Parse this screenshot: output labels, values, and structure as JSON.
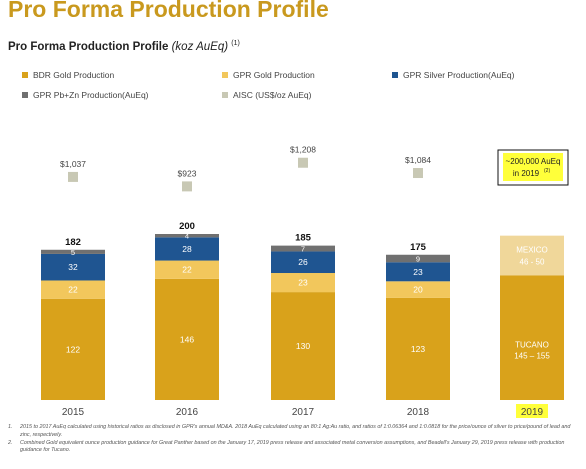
{
  "page_title": "Pro Forma Production Profile",
  "chart_data": {
    "type": "bar",
    "title": "Pro Forma Production Profile",
    "title_unit": "(koz AuEq)",
    "title_note": "(1)",
    "categories": [
      "2015",
      "2016",
      "2017",
      "2018",
      "2019"
    ],
    "series": [
      {
        "name": "BDR Gold Production",
        "values": [
          122,
          146,
          130,
          123,
          null
        ],
        "labels": [
          "122",
          "146",
          "130",
          "123",
          ""
        ],
        "color": "#d9a21b"
      },
      {
        "name": "GPR Gold Production",
        "values": [
          22,
          22,
          23,
          20,
          null
        ],
        "labels": [
          "22",
          "22",
          "23",
          "20",
          ""
        ],
        "color": "#f2c75c"
      },
      {
        "name": "GPR Silver Production(AuEq)",
        "values": [
          32,
          28,
          26,
          23,
          null
        ],
        "labels": [
          "32",
          "28",
          "26",
          "23",
          ""
        ],
        "color": "#1f5591"
      },
      {
        "name": "GPR Pb+Zn Production(AuEq)",
        "values": [
          5,
          4,
          7,
          9,
          null
        ],
        "labels": [
          "5",
          "4",
          "7",
          "9",
          ""
        ],
        "color": "#707070"
      }
    ],
    "totals": [
      182,
      200,
      185,
      175,
      null
    ],
    "total_labels": [
      "182",
      "200",
      "185",
      "175",
      ""
    ],
    "aisc": {
      "name": "AISC (US$/oz AuEq)",
      "values": [
        1037,
        923,
        1208,
        1084,
        null
      ],
      "labels": [
        "$1,037",
        "$923",
        "$1,208",
        "$1,084",
        ""
      ],
      "color": "#c8c8b4"
    },
    "guidance_2019": {
      "tucano_label": "TUCANO",
      "tucano_range": "145 – 155",
      "tucano_value": 150,
      "tucano_color": "#d9a21b",
      "mexico_label": "MEXICO",
      "mexico_range": "46 - 50",
      "mexico_value": 48,
      "mexico_color": "#f0d79a",
      "callout_line1": "~200,000 AuEq",
      "callout_line2": "in 2019",
      "callout_note": "(2)",
      "highlight_color": "#ffff3a"
    },
    "ylim": [
      0,
      340
    ],
    "xlabel": "",
    "ylabel": "",
    "legend_position": "top",
    "grid": false
  },
  "footnotes": [
    {
      "num": "1.",
      "text": "2015 to 2017 AuEq calculated using historical ratios as disclosed in GPR's annual MD&A. 2018 AuEq calculated using an 80:1 Ag:Au ratio, and ratios of 1:0.06364 and 1:0.0818 for the price/ounce of silver to price/pound of lead and zinc, respectively."
    },
    {
      "num": "2.",
      "text": "Combined Gold equivalent ounce production guidance for Great Panther based on the January 17, 2019 press release and associated metal conversion assumptions, and Beadell's January 29, 2019 press release with production guidance for Tucano."
    }
  ]
}
